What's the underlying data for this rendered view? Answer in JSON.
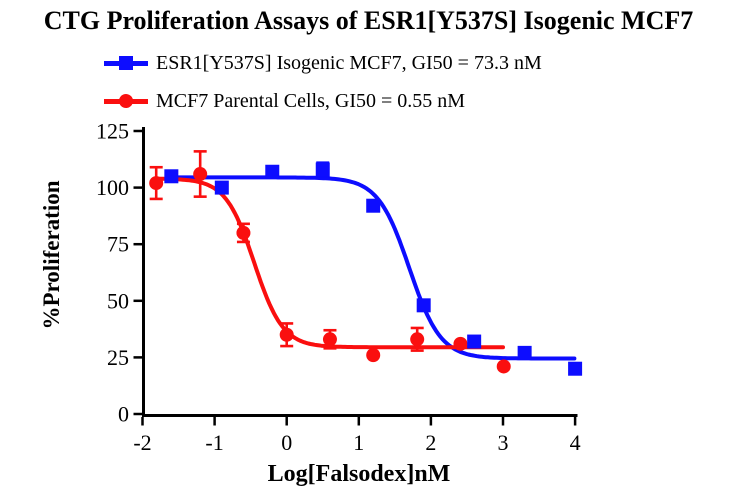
{
  "title": "CTG Proliferation Assays of ESR1[Y537S] Isogenic MCF7",
  "legend": {
    "items": [
      {
        "label": "ESR1[Y537S] Isogenic MCF7, GI50 = 73.3 nM",
        "color": "#0d0dff",
        "marker": "square"
      },
      {
        "label": "MCF7 Parental Cells, GI50 = 0.55 nM",
        "color": "#fa0f0f",
        "marker": "circle"
      }
    ]
  },
  "chart_data": {
    "type": "scatter",
    "subtype": "dose-response curves with 4PL sigmoidal fit and error bars",
    "title": "CTG Proliferation Assays of ESR1[Y537S] Isogenic MCF7",
    "xlabel": "Log[Falsodex]nM",
    "ylabel": "%Proliferation",
    "xlim": [
      -2,
      4
    ],
    "ylim": [
      0,
      125
    ],
    "xticks": [
      -2,
      -1,
      0,
      1,
      2,
      3,
      4
    ],
    "yticks": [
      0,
      25,
      50,
      75,
      100,
      125
    ],
    "grid": false,
    "legend_position": "top-left above plot",
    "series": [
      {
        "name": "ESR1[Y537S] Isogenic MCF7",
        "gi50": "73.3 nM",
        "color": "#0d0dff",
        "marker": "square",
        "x": [
          -1.6,
          -0.9,
          -0.2,
          0.5,
          1.2,
          1.9,
          2.6,
          3.3,
          4.0
        ],
        "y": [
          105,
          100,
          107,
          108,
          92,
          48,
          32,
          27,
          20
        ],
        "yerr": [
          0,
          0,
          0,
          3,
          0,
          0,
          0,
          0,
          0
        ],
        "fit": {
          "top": 104.5,
          "bottom": 24.5,
          "log_ic50": 1.7,
          "hill": 2.0
        },
        "curve_range": [
          -1.62,
          4.0
        ]
      },
      {
        "name": "MCF7 Parental Cells",
        "gi50": "0.55 nM",
        "color": "#fa0f0f",
        "marker": "circle",
        "x": [
          -1.81,
          -1.2,
          -0.6,
          0.0,
          0.6,
          1.2,
          1.81,
          2.41,
          3.01
        ],
        "y": [
          102,
          106,
          80,
          35,
          33,
          26,
          33,
          31,
          21
        ],
        "yerr": [
          7,
          10,
          4,
          5,
          4,
          0,
          5,
          0,
          0
        ],
        "fit": {
          "top": 104,
          "bottom": 29.5,
          "log_ic50": -0.45,
          "hill": 2.19
        },
        "curve_range": [
          -1.83,
          3.0
        ]
      }
    ]
  }
}
